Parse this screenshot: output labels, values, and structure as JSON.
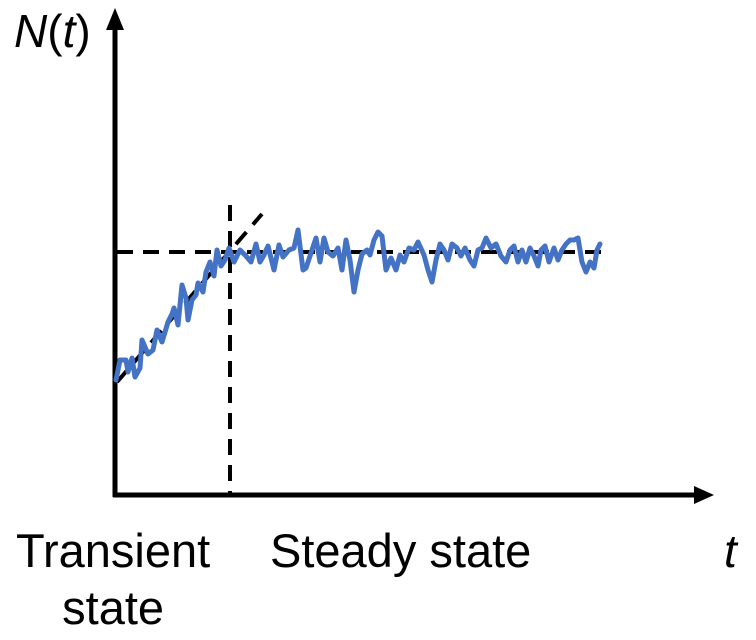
{
  "axes": {
    "y_label_parts": [
      "N",
      "(",
      "t",
      ")"
    ],
    "x_label": "t",
    "color": "#000000"
  },
  "regions": {
    "transient_line1": "Transient",
    "transient_line2": "state",
    "steady": "Steady state"
  },
  "colors": {
    "signal": "#4472c4",
    "guides": "#000000"
  },
  "signal": {
    "level_steady": 1.0,
    "level_start": 0.4
  }
}
